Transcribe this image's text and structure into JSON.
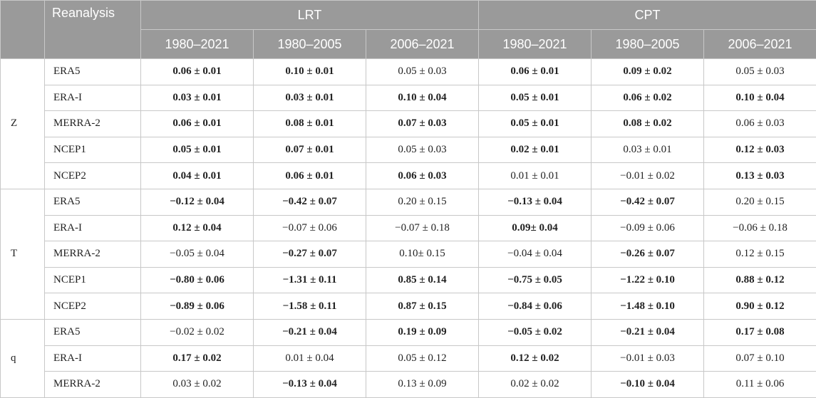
{
  "header": {
    "corner": "",
    "reanalysis": "Reanalysis",
    "groups": [
      "LRT",
      "CPT"
    ],
    "periods": [
      "1980–2021",
      "1980–2005",
      "2006–2021",
      "1980–2021",
      "1980–2005",
      "2006–2021"
    ]
  },
  "groups": [
    {
      "variable": "Z",
      "rows": [
        {
          "name": "ERA5",
          "cells": [
            {
              "v": "0.06 ± 0.01",
              "b": true
            },
            {
              "v": "0.10 ± 0.01",
              "b": true
            },
            {
              "v": "0.05 ± 0.03",
              "b": false
            },
            {
              "v": "0.06 ± 0.01",
              "b": true
            },
            {
              "v": "0.09 ± 0.02",
              "b": true
            },
            {
              "v": "0.05 ± 0.03",
              "b": false
            }
          ]
        },
        {
          "name": "ERA-I",
          "cells": [
            {
              "v": "0.03 ± 0.01",
              "b": true
            },
            {
              "v": "0.03 ± 0.01",
              "b": true
            },
            {
              "v": "0.10 ± 0.04",
              "b": true
            },
            {
              "v": "0.05 ± 0.01",
              "b": true
            },
            {
              "v": "0.06 ± 0.02",
              "b": true
            },
            {
              "v": "0.10 ± 0.04",
              "b": true
            }
          ]
        },
        {
          "name": "MERRA-2",
          "cells": [
            {
              "v": "0.06 ± 0.01",
              "b": true
            },
            {
              "v": "0.08 ± 0.01",
              "b": true
            },
            {
              "v": "0.07 ± 0.03",
              "b": true
            },
            {
              "v": "0.05 ± 0.01",
              "b": true
            },
            {
              "v": "0.08 ± 0.02",
              "b": true
            },
            {
              "v": "0.06 ± 0.03",
              "b": false
            }
          ]
        },
        {
          "name": "NCEP1",
          "cells": [
            {
              "v": "0.05 ± 0.01",
              "b": true
            },
            {
              "v": "0.07 ± 0.01",
              "b": true
            },
            {
              "v": "0.05 ± 0.03",
              "b": false
            },
            {
              "v": "0.02 ± 0.01",
              "b": true
            },
            {
              "v": "0.03 ± 0.01",
              "b": false
            },
            {
              "v": "0.12 ± 0.03",
              "b": true
            }
          ]
        },
        {
          "name": "NCEP2",
          "cells": [
            {
              "v": "0.04 ± 0.01",
              "b": true
            },
            {
              "v": "0.06 ± 0.01",
              "b": true
            },
            {
              "v": "0.06 ± 0.03",
              "b": true
            },
            {
              "v": "0.01 ± 0.01",
              "b": false
            },
            {
              "v": "−0.01 ± 0.02",
              "b": false
            },
            {
              "v": "0.13 ± 0.03",
              "b": true
            }
          ]
        }
      ]
    },
    {
      "variable": "T",
      "rows": [
        {
          "name": "ERA5",
          "cells": [
            {
              "v": "−0.12 ± 0.04",
              "b": true
            },
            {
              "v": "−0.42 ± 0.07",
              "b": true
            },
            {
              "v": "0.20 ± 0.15",
              "b": false
            },
            {
              "v": "−0.13 ± 0.04",
              "b": true
            },
            {
              "v": "−0.42 ± 0.07",
              "b": true
            },
            {
              "v": "0.20 ± 0.15",
              "b": false
            }
          ]
        },
        {
          "name": "ERA-I",
          "cells": [
            {
              "v": "0.12 ± 0.04",
              "b": true
            },
            {
              "v": "−0.07 ± 0.06",
              "b": false
            },
            {
              "v": "−0.07 ± 0.18",
              "b": false
            },
            {
              "v": "0.09± 0.04",
              "b": true
            },
            {
              "v": "−0.09 ± 0.06",
              "b": false
            },
            {
              "v": "−0.06 ± 0.18",
              "b": false
            }
          ]
        },
        {
          "name": "MERRA-2",
          "cells": [
            {
              "v": "−0.05 ± 0.04",
              "b": false
            },
            {
              "v": "−0.27 ± 0.07",
              "b": true
            },
            {
              "v": "0.10± 0.15",
              "b": false
            },
            {
              "v": "−0.04 ± 0.04",
              "b": false
            },
            {
              "v": "−0.26 ± 0.07",
              "b": true
            },
            {
              "v": "0.12 ± 0.15",
              "b": false
            }
          ]
        },
        {
          "name": "NCEP1",
          "cells": [
            {
              "v": "−0.80 ± 0.06",
              "b": true
            },
            {
              "v": "−1.31 ± 0.11",
              "b": true
            },
            {
              "v": "0.85 ± 0.14",
              "b": true
            },
            {
              "v": "−0.75 ± 0.05",
              "b": true
            },
            {
              "v": "−1.22 ± 0.10",
              "b": true
            },
            {
              "v": "0.88 ± 0.12",
              "b": true
            }
          ]
        },
        {
          "name": "NCEP2",
          "cells": [
            {
              "v": "−0.89 ± 0.06",
              "b": true
            },
            {
              "v": "−1.58 ± 0.11",
              "b": true
            },
            {
              "v": "0.87 ± 0.15",
              "b": true
            },
            {
              "v": "−0.84 ± 0.06",
              "b": true
            },
            {
              "v": "−1.48 ± 0.10",
              "b": true
            },
            {
              "v": "0.90 ± 0.12",
              "b": true
            }
          ]
        }
      ]
    },
    {
      "variable": "q",
      "rows": [
        {
          "name": "ERA5",
          "cells": [
            {
              "v": "−0.02 ± 0.02",
              "b": false
            },
            {
              "v": "−0.21 ± 0.04",
              "b": true
            },
            {
              "v": "0.19 ± 0.09",
              "b": true
            },
            {
              "v": "−0.05 ± 0.02",
              "b": true
            },
            {
              "v": "−0.21 ± 0.04",
              "b": true
            },
            {
              "v": "0.17 ± 0.08",
              "b": true
            }
          ]
        },
        {
          "name": "ERA-I",
          "cells": [
            {
              "v": "0.17 ± 0.02",
              "b": true
            },
            {
              "v": "0.01 ± 0.04",
              "b": false
            },
            {
              "v": "0.05 ± 0.12",
              "b": false
            },
            {
              "v": "0.12 ± 0.02",
              "b": true
            },
            {
              "v": "−0.01 ± 0.03",
              "b": false
            },
            {
              "v": "0.07 ± 0.10",
              "b": false
            }
          ]
        },
        {
          "name": "MERRA-2",
          "cells": [
            {
              "v": "0.03 ± 0.02",
              "b": false
            },
            {
              "v": "−0.13 ± 0.04",
              "b": true
            },
            {
              "v": "0.13 ± 0.09",
              "b": false
            },
            {
              "v": "0.02 ± 0.02",
              "b": false
            },
            {
              "v": "−0.10 ± 0.04",
              "b": true
            },
            {
              "v": "0.11 ± 0.06",
              "b": false
            }
          ]
        }
      ]
    }
  ]
}
